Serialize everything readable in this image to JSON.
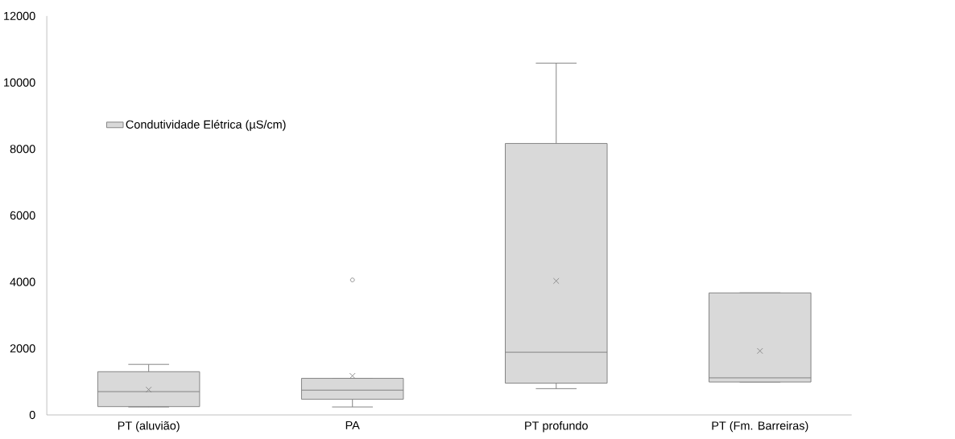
{
  "chart_data": {
    "type": "box",
    "categories": [
      "PT (aluvião)",
      "PA",
      "PT profundo",
      "PT (Fm. Barreiras)"
    ],
    "series": [
      {
        "name": "Condutividade Elétrica (µS/cm)",
        "color": "#d9d9d9",
        "boxes": [
          {
            "low": 240,
            "q1": 250,
            "median": 700,
            "q3": 1300,
            "high": 1520,
            "mean": 760
          },
          {
            "low": 240,
            "q1": 470,
            "median": 745,
            "q3": 1100,
            "high": 1100,
            "mean": 1175,
            "outliers": [
              4060
            ]
          },
          {
            "low": 790,
            "q1": 955,
            "median": 1885,
            "q3": 8165,
            "high": 10580,
            "mean": 4030
          },
          {
            "low": 990,
            "q1": 990,
            "median": 1115,
            "q3": 3670,
            "high": 3670,
            "mean": 1925
          }
        ]
      }
    ],
    "ylim": [
      0,
      12000
    ],
    "yticks": [
      0,
      2000,
      4000,
      6000,
      8000,
      10000,
      12000
    ],
    "legend": "top left",
    "grid": false
  }
}
